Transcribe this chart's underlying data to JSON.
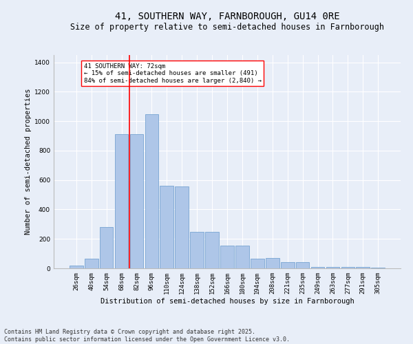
{
  "title": "41, SOUTHERN WAY, FARNBOROUGH, GU14 0RE",
  "subtitle": "Size of property relative to semi-detached houses in Farnborough",
  "xlabel": "Distribution of semi-detached houses by size in Farnborough",
  "ylabel": "Number of semi-detached properties",
  "categories": [
    "26sqm",
    "40sqm",
    "54sqm",
    "68sqm",
    "82sqm",
    "96sqm",
    "110sqm",
    "124sqm",
    "138sqm",
    "152sqm",
    "166sqm",
    "180sqm",
    "194sqm",
    "208sqm",
    "221sqm",
    "235sqm",
    "249sqm",
    "263sqm",
    "277sqm",
    "291sqm",
    "305sqm"
  ],
  "values": [
    18,
    65,
    280,
    910,
    910,
    1050,
    560,
    555,
    250,
    250,
    155,
    155,
    65,
    70,
    40,
    40,
    10,
    10,
    10,
    10,
    5
  ],
  "bar_color": "#aec6e8",
  "bar_edge_color": "#6699cc",
  "vline_x_index": 3,
  "vline_color": "red",
  "annotation_text": "41 SOUTHERN WAY: 72sqm\n← 15% of semi-detached houses are smaller (491)\n84% of semi-detached houses are larger (2,840) →",
  "annotation_box_color": "white",
  "annotation_box_edge_color": "red",
  "ylim": [
    0,
    1450
  ],
  "yticks": [
    0,
    200,
    400,
    600,
    800,
    1000,
    1200,
    1400
  ],
  "footer_line1": "Contains HM Land Registry data © Crown copyright and database right 2025.",
  "footer_line2": "Contains public sector information licensed under the Open Government Licence v3.0.",
  "bg_color": "#e8eef8",
  "plot_bg_color": "#e8eef8",
  "grid_color": "white",
  "title_fontsize": 10,
  "subtitle_fontsize": 8.5,
  "axis_label_fontsize": 7.5,
  "tick_fontsize": 6.5,
  "annotation_fontsize": 6.5,
  "footer_fontsize": 6
}
